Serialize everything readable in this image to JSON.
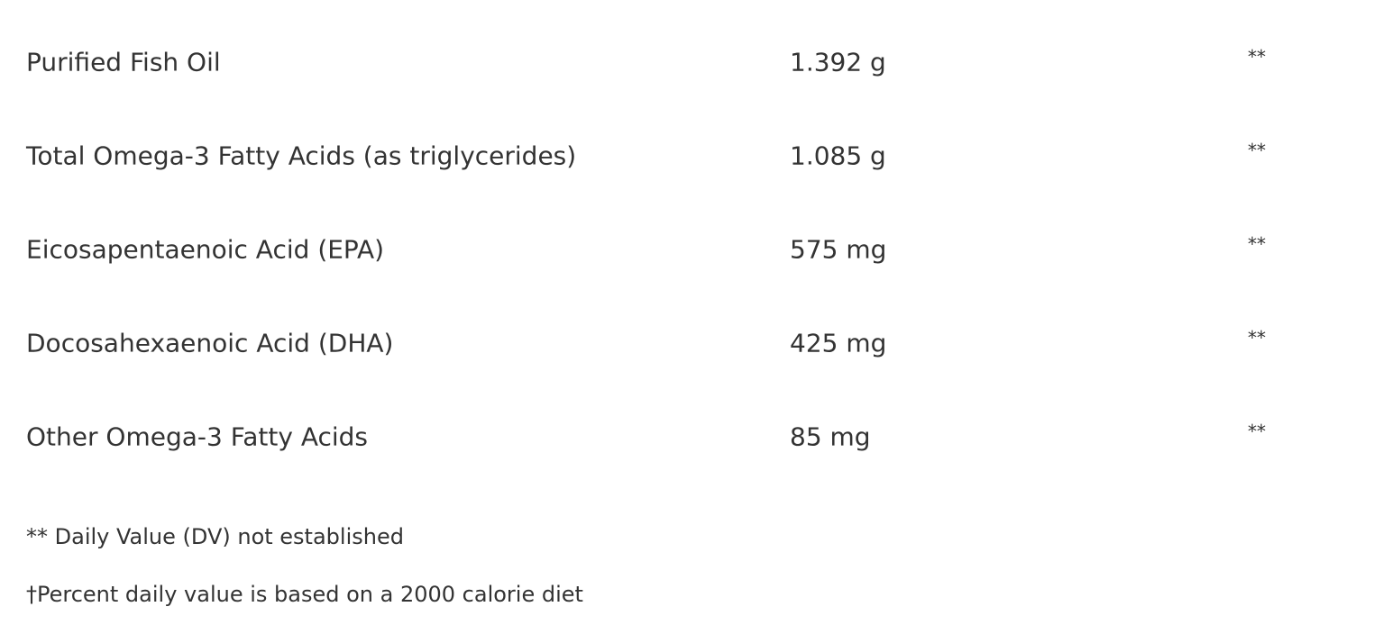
{
  "rows": [
    {
      "name": "Purified Fish Oil",
      "amount": "1.392 g",
      "dv": "**"
    },
    {
      "name": "Total Omega-3 Fatty Acids (as triglycerides)",
      "amount": "1.085 g",
      "dv": "**"
    },
    {
      "name": "Eicosapentaenoic Acid (EPA)",
      "amount": "575 mg",
      "dv": "**"
    },
    {
      "name": "Docosahexaenoic Acid (DHA)",
      "amount": "425 mg",
      "dv": "**"
    },
    {
      "name": "Other Omega-3 Fatty Acids",
      "amount": "85 mg",
      "dv": "**"
    }
  ],
  "footnotes": [
    "** Daily Value (DV) not established",
    "†Percent daily value is based on a 2000 calorie diet"
  ]
}
